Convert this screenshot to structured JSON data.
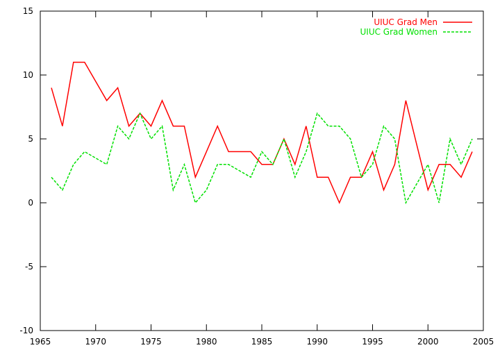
{
  "chart_data": {
    "type": "line",
    "title": "",
    "xlabel": "",
    "ylabel": "",
    "xlim": [
      1965,
      2005
    ],
    "ylim": [
      -10,
      15
    ],
    "xticks": [
      1965,
      1970,
      1975,
      1980,
      1985,
      1990,
      1995,
      2000,
      2005
    ],
    "yticks": [
      -10,
      -5,
      0,
      5,
      10,
      15
    ],
    "grid": false,
    "legend_position": "top-right",
    "x": [
      1966,
      1967,
      1968,
      1969,
      1970,
      1971,
      1972,
      1973,
      1974,
      1975,
      1976,
      1977,
      1978,
      1979,
      1980,
      1981,
      1982,
      1983,
      1984,
      1985,
      1986,
      1987,
      1988,
      1989,
      1990,
      1991,
      1992,
      1993,
      1994,
      1995,
      1996,
      1997,
      1998,
      1999,
      2000,
      2001,
      2002,
      2003,
      2004
    ],
    "series": [
      {
        "name": "UIUC Grad Men",
        "color": "#ff0000",
        "dash": "solid",
        "values": [
          9,
          6,
          11,
          11,
          9.5,
          8,
          9,
          6,
          7,
          6,
          8,
          6,
          6,
          2,
          4,
          6,
          4,
          4,
          4,
          3,
          3,
          5,
          3,
          6,
          2,
          2,
          0,
          2,
          2,
          4,
          1,
          3,
          8,
          4.5,
          1,
          3,
          3,
          2,
          4
        ]
      },
      {
        "name": "UIUC Grad Women",
        "color": "#00e000",
        "dash": "dashed",
        "values": [
          2,
          1,
          3,
          4,
          3.5,
          3,
          6,
          5,
          7,
          5,
          6,
          1,
          3,
          0,
          1,
          3,
          3,
          2.5,
          2,
          4,
          3,
          5,
          2,
          4,
          7,
          6,
          6,
          5,
          2,
          3,
          6,
          5,
          0,
          1.5,
          3,
          0,
          5,
          3,
          5
        ]
      }
    ]
  }
}
